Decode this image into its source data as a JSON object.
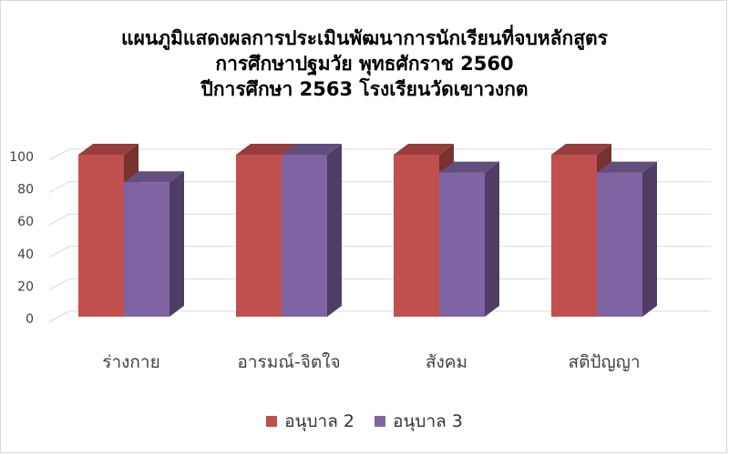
{
  "chart_data": {
    "type": "bar",
    "title": [
      "แผนภูมิแสดงผลการประเมินพัฒนาการนักเรียนที่จบหลักสูตร",
      "การศึกษาปฐมวัย  พุทธศักราช 2560",
      "ปีการศึกษา 2563 โรงเรียนวัดเขาวงกต"
    ],
    "categories": [
      "ร่างกาย",
      "อารมณ์-จิตใจ",
      "สังคม",
      "สติปัญญา"
    ],
    "series": [
      {
        "name": "อนุบาล 2",
        "values": [
          100,
          100,
          100,
          100
        ],
        "color": "#c0504d"
      },
      {
        "name": "อนุบาล 3",
        "values": [
          83,
          100,
          89,
          89
        ],
        "color": "#8064a2"
      }
    ],
    "yticks": [
      0,
      20,
      40,
      60,
      80,
      100
    ],
    "ylim": [
      0,
      100
    ],
    "grid": true,
    "legend": "bottom",
    "style": "3d-clustered-column"
  }
}
